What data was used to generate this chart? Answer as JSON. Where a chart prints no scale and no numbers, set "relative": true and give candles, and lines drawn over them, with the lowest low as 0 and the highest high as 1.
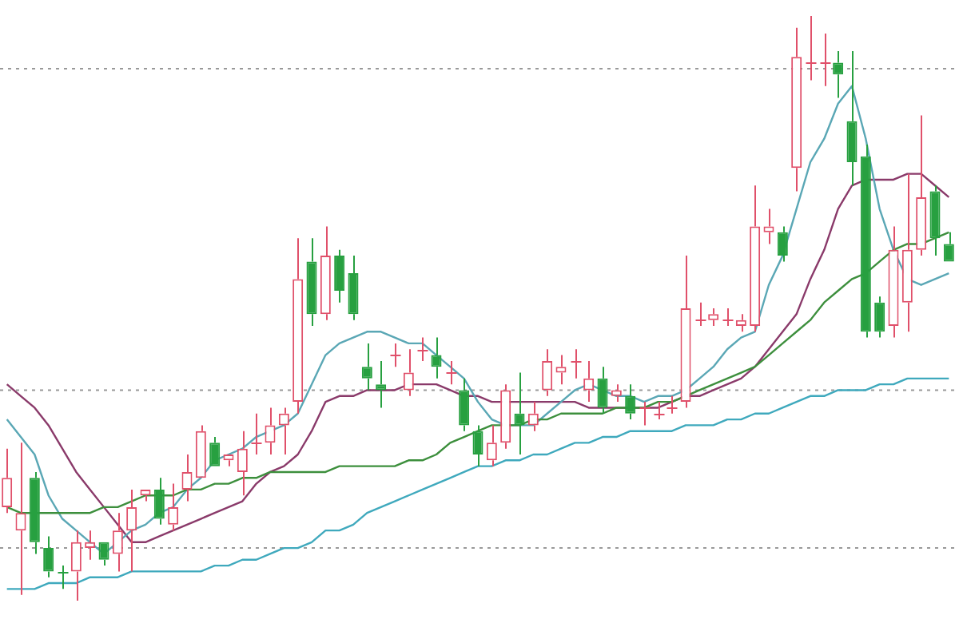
{
  "chart_data": {
    "type": "candlestick",
    "relative": true,
    "categories": [
      null,
      null,
      null,
      null,
      null,
      null,
      null,
      null,
      null,
      null,
      null,
      null,
      null,
      null,
      null,
      null,
      null,
      null,
      null,
      null,
      null,
      null,
      null,
      null,
      null,
      null,
      null,
      null,
      null,
      null,
      null,
      null,
      null,
      null,
      null,
      null,
      null,
      null,
      null,
      null,
      null,
      null,
      null,
      null,
      null,
      null,
      null,
      null,
      null,
      null,
      null,
      null,
      null,
      null,
      null,
      null,
      null,
      null,
      null,
      null,
      null,
      null,
      null,
      null,
      null,
      null,
      null,
      null,
      null
    ],
    "ohlc": [
      [
        0.16,
        0.26,
        0.15,
        0.21
      ],
      [
        0.12,
        0.27,
        0.01,
        0.15
      ],
      [
        0.21,
        0.22,
        0.08,
        0.1
      ],
      [
        0.09,
        0.11,
        0.04,
        0.05
      ],
      [
        0.05,
        0.06,
        0.02,
        0.05
      ],
      [
        0.05,
        0.12,
        0,
        0.1
      ],
      [
        0.09,
        0.12,
        0.07,
        0.1
      ],
      [
        0.1,
        0.1,
        0.06,
        0.07
      ],
      [
        0.08,
        0.15,
        0.05,
        0.12
      ],
      [
        0.12,
        0.19,
        0.05,
        0.16
      ],
      [
        0.18,
        0.19,
        0.17,
        0.19
      ],
      [
        0.19,
        0.21,
        0.13,
        0.14
      ],
      [
        0.13,
        0.2,
        0.12,
        0.16
      ],
      [
        0.19,
        0.25,
        0.17,
        0.22
      ],
      [
        0.21,
        0.3,
        0.21,
        0.29
      ],
      [
        0.27,
        0.28,
        0.23,
        0.23
      ],
      [
        0.24,
        0.25,
        0.23,
        0.25
      ],
      [
        0.22,
        0.29,
        0.18,
        0.26
      ],
      [
        0.27,
        0.32,
        0.25,
        0.27
      ],
      [
        0.27,
        0.33,
        0.25,
        0.3
      ],
      [
        0.3,
        0.33,
        0.25,
        0.32
      ],
      [
        0.34,
        0.62,
        0.32,
        0.55
      ],
      [
        0.58,
        0.62,
        0.47,
        0.49
      ],
      [
        0.49,
        0.64,
        0.48,
        0.59
      ],
      [
        0.59,
        0.6,
        0.51,
        0.53
      ],
      [
        0.56,
        0.59,
        0.48,
        0.49
      ],
      [
        0.4,
        0.44,
        0.36,
        0.38
      ],
      [
        0.37,
        0.41,
        0.33,
        0.36
      ],
      [
        0.42,
        0.44,
        0.4,
        0.42
      ],
      [
        0.36,
        0.43,
        0.35,
        0.39
      ],
      [
        0.43,
        0.45,
        0.41,
        0.43
      ],
      [
        0.42,
        0.45,
        0.38,
        0.4
      ],
      [
        0.39,
        0.41,
        0.37,
        0.39
      ],
      [
        0.36,
        0.38,
        0.29,
        0.3
      ],
      [
        0.29,
        0.3,
        0.23,
        0.25
      ],
      [
        0.24,
        0.3,
        0.23,
        0.27
      ],
      [
        0.27,
        0.37,
        0.26,
        0.36
      ],
      [
        0.32,
        0.39,
        0.25,
        0.3
      ],
      [
        0.3,
        0.34,
        0.29,
        0.32
      ],
      [
        0.36,
        0.43,
        0.35,
        0.41
      ],
      [
        0.39,
        0.42,
        0.37,
        0.4
      ],
      [
        0.41,
        0.43,
        0.38,
        0.41
      ],
      [
        0.36,
        0.41,
        0.34,
        0.38
      ],
      [
        0.38,
        0.4,
        0.32,
        0.33
      ],
      [
        0.35,
        0.37,
        0.34,
        0.36
      ],
      [
        0.35,
        0.37,
        0.31,
        0.32
      ],
      [
        0.33,
        0.34,
        0.3,
        0.33
      ],
      [
        0.32,
        0.34,
        0.31,
        0.32
      ],
      [
        0.33,
        0.35,
        0.32,
        0.33
      ],
      [
        0.34,
        0.59,
        0.33,
        0.5
      ],
      [
        0.48,
        0.51,
        0.47,
        0.48
      ],
      [
        0.48,
        0.5,
        0.47,
        0.49
      ],
      [
        0.48,
        0.5,
        0.47,
        0.48
      ],
      [
        0.47,
        0.49,
        0.46,
        0.48
      ],
      [
        0.47,
        0.71,
        0.46,
        0.64
      ],
      [
        0.63,
        0.67,
        0.61,
        0.64
      ],
      [
        0.63,
        0.64,
        0.58,
        0.59
      ],
      [
        0.74,
        0.98,
        0.7,
        0.93
      ],
      [
        0.92,
        1.0,
        0.89,
        0.92
      ],
      [
        0.92,
        0.97,
        0.88,
        0.92
      ],
      [
        0.92,
        0.94,
        0.86,
        0.9
      ],
      [
        0.82,
        0.94,
        0.71,
        0.75
      ],
      [
        0.76,
        0.78,
        0.45,
        0.46
      ],
      [
        0.51,
        0.52,
        0.45,
        0.46
      ],
      [
        0.47,
        0.64,
        0.45,
        0.6
      ],
      [
        0.51,
        0.73,
        0.46,
        0.6
      ],
      [
        0.6,
        0.83,
        0.59,
        0.69
      ],
      [
        0.7,
        0.71,
        0.59,
        0.62
      ],
      [
        0.61,
        0.63,
        0.58,
        0.58
      ]
    ],
    "colors": [
      "#e0506a",
      "#e0506a",
      "#27a040",
      "#27a040",
      "#27a040",
      "#e0506a",
      "#e0506a",
      "#27a040",
      "#e0506a",
      "#e0506a",
      "#e0506a",
      "#27a040",
      "#e0506a",
      "#e0506a",
      "#e0506a",
      "#27a040",
      "#e0506a",
      "#e0506a",
      "#e0506a",
      "#e0506a",
      "#e0506a",
      "#e0506a",
      "#27a040",
      "#e0506a",
      "#27a040",
      "#27a040",
      "#27a040",
      "#27a040",
      "#e0506a",
      "#e0506a",
      "#e0506a",
      "#27a040",
      "#e0506a",
      "#27a040",
      "#27a040",
      "#e0506a",
      "#e0506a",
      "#27a040",
      "#e0506a",
      "#e0506a",
      "#e0506a",
      "#e0506a",
      "#e0506a",
      "#27a040",
      "#e0506a",
      "#27a040",
      "#e0506a",
      "#e0506a",
      "#e0506a",
      "#e0506a",
      "#e0506a",
      "#e0506a",
      "#e0506a",
      "#e0506a",
      "#e0506a",
      "#e0506a",
      "#27a040",
      "#e0506a",
      "#e0506a",
      "#e0506a",
      "#27a040",
      "#27a040",
      "#27a040",
      "#27a040",
      "#e0506a",
      "#e0506a",
      "#e0506a",
      "#27a040",
      "#27a040"
    ],
    "series": [
      {
        "type": "line",
        "color": "#3fa9bd",
        "values": [
          0.02,
          0.02,
          0.02,
          0.03,
          0.03,
          0.03,
          0.04,
          0.04,
          0.04,
          0.05,
          0.05,
          0.05,
          0.05,
          0.05,
          0.05,
          0.06,
          0.06,
          0.07,
          0.07,
          0.08,
          0.09,
          0.09,
          0.1,
          0.12,
          0.12,
          0.13,
          0.15,
          0.16,
          0.17,
          0.18,
          0.19,
          0.2,
          0.21,
          0.22,
          0.23,
          0.23,
          0.24,
          0.24,
          0.25,
          0.25,
          0.26,
          0.27,
          0.27,
          0.28,
          0.28,
          0.29,
          0.29,
          0.29,
          0.29,
          0.3,
          0.3,
          0.3,
          0.31,
          0.31,
          0.32,
          0.32,
          0.33,
          0.34,
          0.35,
          0.35,
          0.36,
          0.36,
          0.36,
          0.37,
          0.37,
          0.38,
          0.38,
          0.38,
          0.38
        ]
      },
      {
        "type": "line",
        "color": "#3d8f3d",
        "values": [
          0.16,
          0.15,
          0.15,
          0.15,
          0.15,
          0.15,
          0.15,
          0.16,
          0.16,
          0.17,
          0.18,
          0.18,
          0.18,
          0.19,
          0.19,
          0.2,
          0.2,
          0.21,
          0.21,
          0.22,
          0.22,
          0.22,
          0.22,
          0.22,
          0.23,
          0.23,
          0.23,
          0.23,
          0.23,
          0.24,
          0.24,
          0.25,
          0.27,
          0.28,
          0.29,
          0.3,
          0.3,
          0.3,
          0.31,
          0.31,
          0.32,
          0.32,
          0.32,
          0.32,
          0.33,
          0.33,
          0.33,
          0.34,
          0.34,
          0.35,
          0.36,
          0.37,
          0.38,
          0.39,
          0.4,
          0.42,
          0.44,
          0.46,
          0.48,
          0.51,
          0.53,
          0.55,
          0.56,
          0.58,
          0.6,
          0.61,
          0.61,
          0.62,
          0.63
        ]
      },
      {
        "type": "line",
        "color": "#5aa7b5",
        "values": [
          0.31,
          0.28,
          0.25,
          0.18,
          0.14,
          0.12,
          0.1,
          0.08,
          0.1,
          0.12,
          0.13,
          0.15,
          0.16,
          0.19,
          0.21,
          0.24,
          0.25,
          0.26,
          0.28,
          0.29,
          0.3,
          0.32,
          0.37,
          0.42,
          0.44,
          0.45,
          0.46,
          0.46,
          0.45,
          0.44,
          0.44,
          0.42,
          0.4,
          0.38,
          0.34,
          0.31,
          0.3,
          0.3,
          0.3,
          0.32,
          0.34,
          0.36,
          0.37,
          0.36,
          0.35,
          0.35,
          0.34,
          0.35,
          0.35,
          0.36,
          0.38,
          0.4,
          0.43,
          0.45,
          0.46,
          0.54,
          0.59,
          0.67,
          0.75,
          0.79,
          0.85,
          0.88,
          0.79,
          0.67,
          0.6,
          0.55,
          0.54,
          0.55,
          0.56
        ]
      },
      {
        "type": "line",
        "color": "#8a3a6a",
        "values": [
          0.37,
          0.35,
          0.33,
          0.3,
          0.26,
          0.22,
          0.19,
          0.16,
          0.13,
          0.1,
          0.1,
          0.11,
          0.12,
          0.13,
          0.14,
          0.15,
          0.16,
          0.17,
          0.2,
          0.22,
          0.23,
          0.25,
          0.29,
          0.34,
          0.35,
          0.35,
          0.36,
          0.36,
          0.36,
          0.37,
          0.37,
          0.37,
          0.36,
          0.35,
          0.35,
          0.34,
          0.34,
          0.34,
          0.34,
          0.34,
          0.34,
          0.34,
          0.33,
          0.33,
          0.33,
          0.33,
          0.33,
          0.33,
          0.34,
          0.35,
          0.35,
          0.36,
          0.37,
          0.38,
          0.4,
          0.43,
          0.46,
          0.49,
          0.55,
          0.6,
          0.67,
          0.71,
          0.72,
          0.72,
          0.72,
          0.73,
          0.73,
          0.71,
          0.69
        ]
      }
    ],
    "ref_lines": [
      {
        "axis": "y",
        "value": 0.91,
        "color": "#999999",
        "line_style": "dotted"
      },
      {
        "axis": "y",
        "value": 0.36,
        "color": "#999999",
        "line_style": "dotted"
      },
      {
        "axis": "y",
        "value": 0.09,
        "color": "#999999",
        "line_style": "dotted"
      }
    ],
    "marker": "none"
  }
}
